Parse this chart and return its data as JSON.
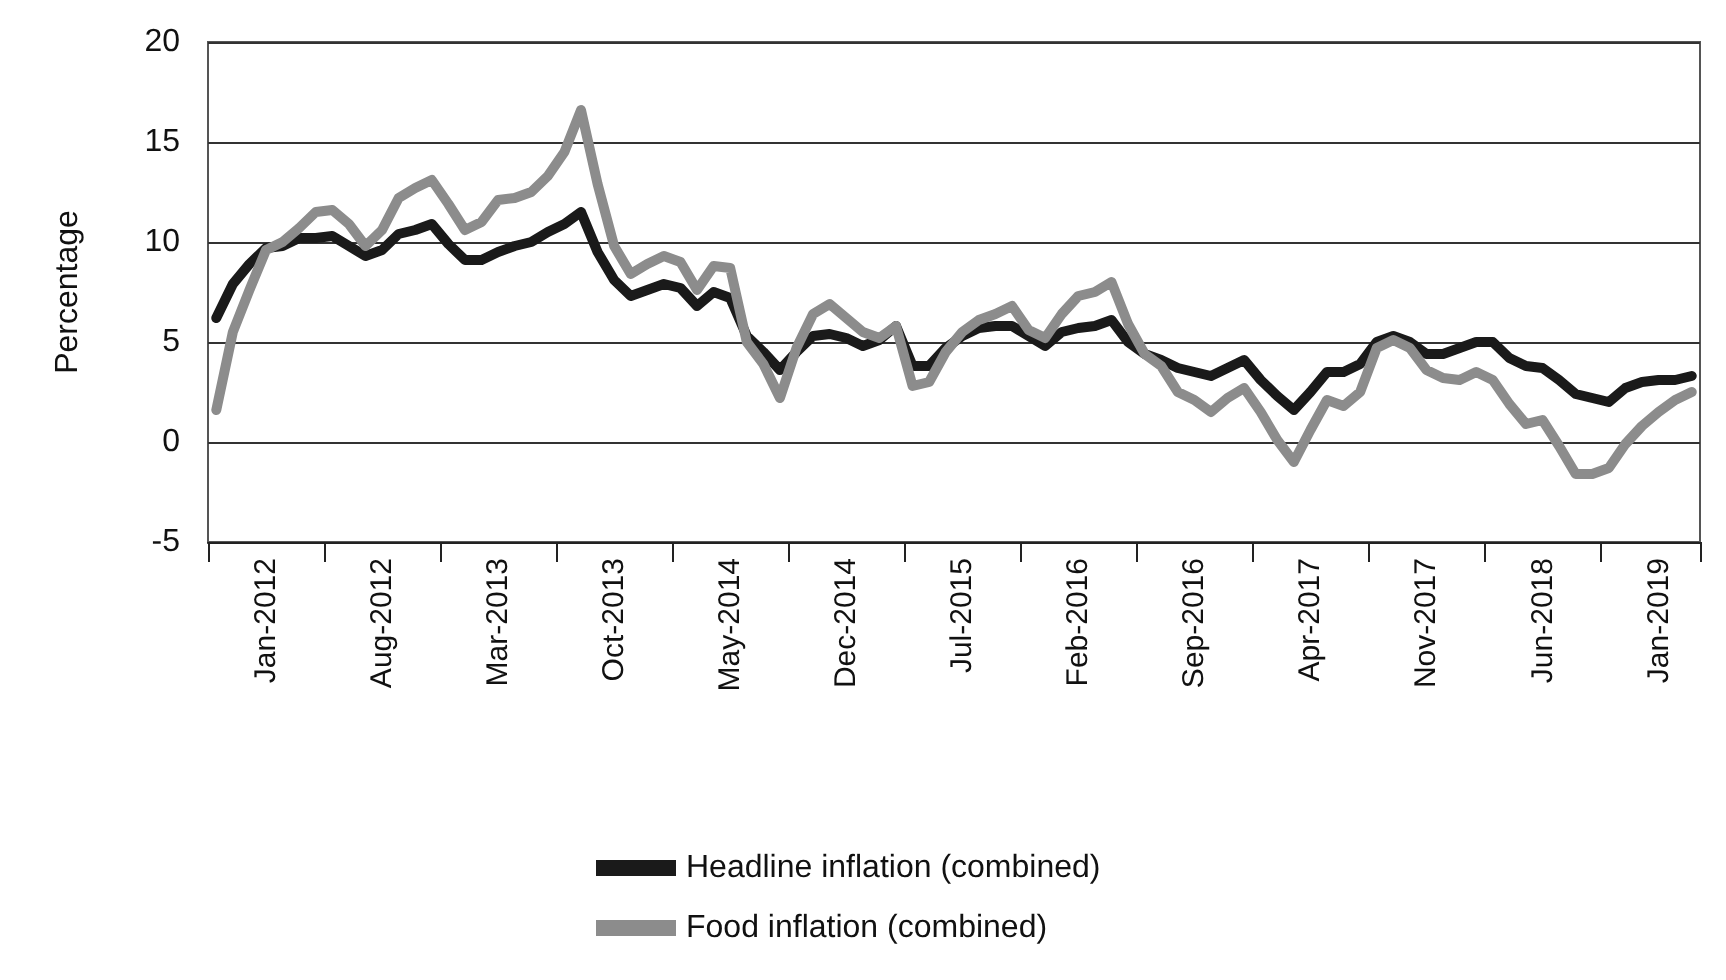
{
  "chart_data": {
    "type": "line",
    "ylabel": "Percentage",
    "categories": [
      null,
      null,
      null,
      "Jan-2012",
      null,
      null,
      null,
      null,
      null,
      null,
      "Aug-2012",
      null,
      null,
      null,
      null,
      null,
      null,
      "Mar-2013",
      null,
      null,
      null,
      null,
      null,
      null,
      "Oct-2013",
      null,
      null,
      null,
      null,
      null,
      null,
      "May-2014",
      null,
      null,
      null,
      null,
      null,
      null,
      "Dec-2014",
      null,
      null,
      null,
      null,
      null,
      null,
      "Jul-2015",
      null,
      null,
      null,
      null,
      null,
      null,
      "Feb-2016",
      null,
      null,
      null,
      null,
      null,
      null,
      "Sep-2016",
      null,
      null,
      null,
      null,
      null,
      null,
      "Apr-2017",
      null,
      null,
      null,
      null,
      null,
      null,
      "Nov-2017",
      null,
      null,
      null,
      null,
      null,
      null,
      "Jun-2018",
      null,
      null,
      null,
      null,
      null,
      null,
      "Jan-2019",
      null,
      null
    ],
    "series": [
      {
        "name": "Headline inflation (combined)",
        "color": "#1a1a1a",
        "values": [
          6.2,
          7.9,
          8.9,
          9.7,
          9.8,
          10.2,
          10.2,
          10.3,
          9.8,
          9.3,
          9.6,
          10.4,
          10.6,
          10.9,
          9.9,
          9.1,
          9.1,
          9.5,
          9.8,
          10.0,
          10.5,
          10.9,
          11.5,
          9.5,
          8.1,
          7.3,
          7.6,
          7.9,
          7.7,
          6.8,
          7.5,
          7.2,
          5.3,
          4.5,
          3.6,
          4.5,
          5.3,
          5.4,
          5.2,
          4.8,
          5.1,
          5.8,
          3.8,
          3.8,
          4.7,
          5.3,
          5.7,
          5.8,
          5.8,
          5.3,
          4.8,
          5.5,
          5.7,
          5.8,
          6.1,
          5.0,
          4.4,
          4.1,
          3.7,
          3.5,
          3.3,
          3.7,
          4.1,
          3.1,
          2.3,
          1.6,
          2.5,
          3.5,
          3.5,
          3.9,
          5.0,
          5.3,
          5.0,
          4.4,
          4.4,
          4.7,
          5.0,
          5.0,
          4.2,
          3.8,
          3.7,
          3.1,
          2.4,
          2.2,
          2.0,
          2.7,
          3.0,
          3.1,
          3.1,
          3.3
        ]
      },
      {
        "name": "Food inflation (combined)",
        "color": "#8c8c8c",
        "values": [
          1.6,
          5.5,
          7.6,
          9.6,
          10.0,
          10.7,
          11.5,
          11.6,
          10.9,
          9.8,
          10.6,
          12.2,
          12.7,
          13.1,
          11.9,
          10.6,
          11.0,
          12.1,
          12.2,
          12.5,
          13.3,
          14.5,
          16.6,
          12.9,
          9.8,
          8.4,
          8.9,
          9.3,
          9.0,
          7.6,
          8.8,
          8.7,
          5.0,
          3.9,
          2.2,
          4.7,
          6.4,
          6.9,
          6.2,
          5.5,
          5.2,
          5.8,
          2.8,
          3.0,
          4.5,
          5.5,
          6.1,
          6.4,
          6.8,
          5.6,
          5.2,
          6.4,
          7.3,
          7.5,
          8.0,
          5.9,
          4.4,
          3.8,
          2.5,
          2.1,
          1.5,
          2.2,
          2.7,
          1.5,
          0.1,
          -1.0,
          0.6,
          2.1,
          1.8,
          2.5,
          4.7,
          5.1,
          4.7,
          3.6,
          3.2,
          3.1,
          3.5,
          3.1,
          1.9,
          0.9,
          1.1,
          -0.2,
          -1.6,
          -1.6,
          -1.3,
          -0.1,
          0.8,
          1.5,
          2.1,
          2.5
        ]
      }
    ],
    "ylim": [
      -5,
      20
    ],
    "yticks": [
      -5,
      0,
      5,
      10,
      15,
      20
    ],
    "grid": "y",
    "legend": "bottom",
    "marker": "none",
    "line_style": "solid"
  }
}
